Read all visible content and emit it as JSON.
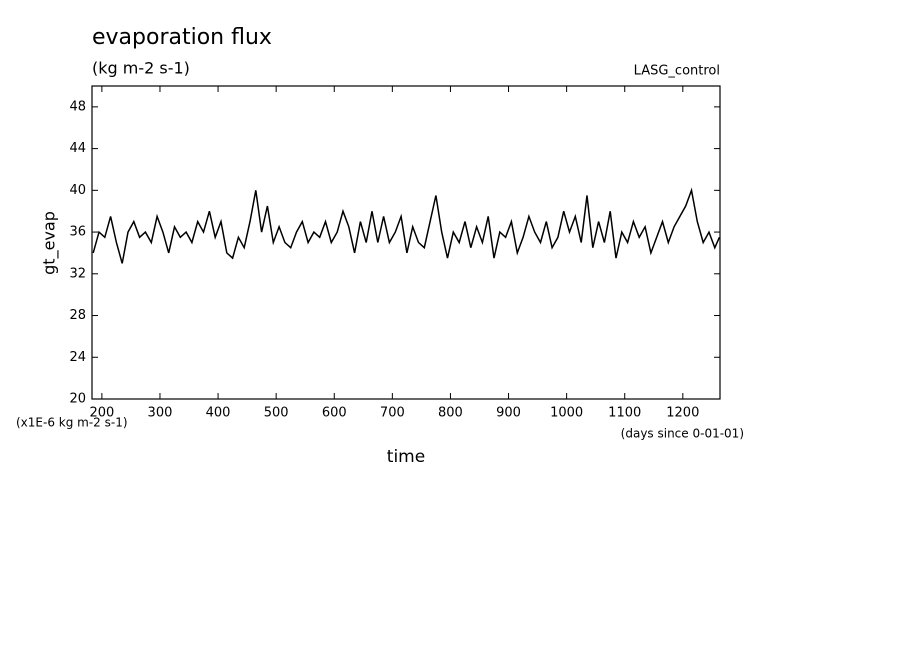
{
  "chart_data": {
    "type": "line",
    "title": "evaporation flux",
    "subtitle": "(kg m-2 s-1)",
    "annotation": "LASG_control",
    "ylabel": "gt_evap",
    "y_unit_label": "(x1E-6 kg m-2 s-1)",
    "x_unit_label": "(days since 0-01-01)",
    "xlabel": "time",
    "xlim": [
      183,
      1264
    ],
    "ylim": [
      20,
      50
    ],
    "xticks": [
      200,
      300,
      400,
      500,
      600,
      700,
      800,
      900,
      1000,
      1100,
      1200
    ],
    "yticks": [
      20,
      24,
      28,
      32,
      36,
      40,
      44,
      48
    ],
    "color": "#000000",
    "x": [
      185,
      195,
      205,
      215,
      225,
      235,
      245,
      255,
      265,
      275,
      285,
      295,
      305,
      315,
      325,
      335,
      345,
      355,
      365,
      375,
      385,
      395,
      405,
      415,
      425,
      435,
      445,
      455,
      465,
      475,
      485,
      495,
      505,
      515,
      525,
      535,
      545,
      555,
      565,
      575,
      585,
      595,
      605,
      615,
      625,
      635,
      645,
      655,
      665,
      675,
      685,
      695,
      705,
      715,
      725,
      735,
      745,
      755,
      765,
      775,
      785,
      795,
      805,
      815,
      825,
      835,
      845,
      855,
      865,
      875,
      885,
      895,
      905,
      915,
      925,
      935,
      945,
      955,
      965,
      975,
      985,
      995,
      1005,
      1015,
      1025,
      1035,
      1045,
      1055,
      1065,
      1075,
      1085,
      1095,
      1105,
      1115,
      1125,
      1135,
      1145,
      1155,
      1165,
      1175,
      1185,
      1195,
      1205,
      1215,
      1225,
      1235,
      1245,
      1255,
      1263
    ],
    "values": [
      34,
      36,
      35.5,
      37.5,
      35,
      33,
      36,
      37,
      35.5,
      36,
      35,
      37.5,
      36,
      34,
      36.5,
      35.5,
      36,
      35,
      37,
      36,
      38,
      35.5,
      37,
      34,
      33.5,
      35.5,
      34.5,
      37,
      40,
      36,
      38.5,
      35,
      36.5,
      35,
      34.5,
      36,
      37,
      35,
      36,
      35.5,
      37,
      35,
      36,
      38,
      36.5,
      34,
      37,
      35,
      38,
      35,
      37.5,
      35,
      36,
      37.5,
      34,
      36.5,
      35,
      34.5,
      37,
      39.5,
      36,
      33.5,
      36,
      35,
      37,
      34.5,
      36.5,
      35,
      37.5,
      33.5,
      36,
      35.5,
      37,
      34,
      35.5,
      37.5,
      36,
      35,
      37,
      34.5,
      35.5,
      38,
      36,
      37.5,
      35,
      39.5,
      34.5,
      37,
      35,
      38,
      33.5,
      36,
      35,
      37,
      35.5,
      36.5,
      34,
      35.5,
      37,
      35,
      36.5,
      37.5,
      38.5,
      40,
      37,
      35,
      36,
      34.5,
      35.5
    ]
  }
}
